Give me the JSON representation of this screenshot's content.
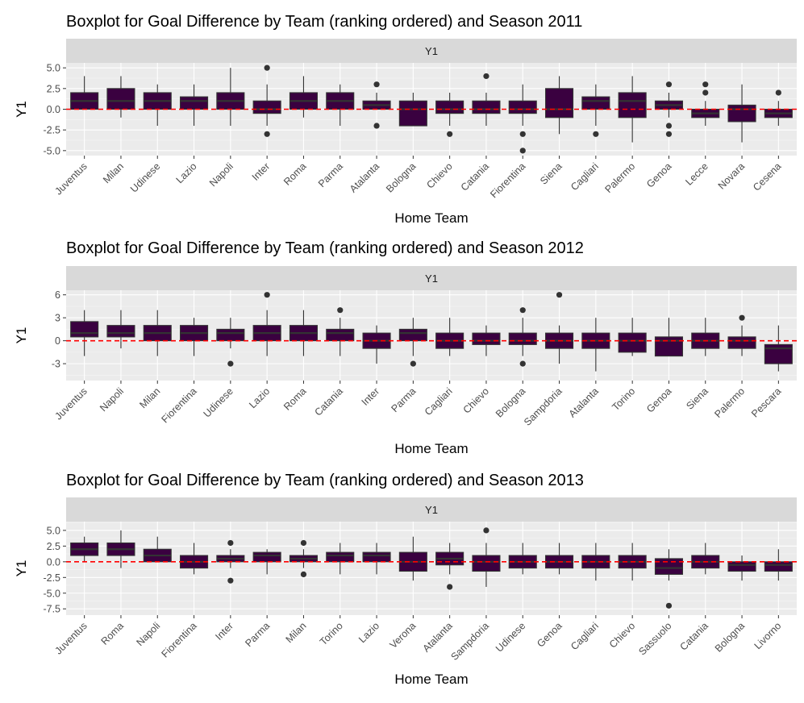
{
  "chart_data": [
    {
      "type": "boxplot",
      "title": "Boxplot for Goal Difference by Team (ranking ordered) and Season 2011",
      "strip_label": "Y1",
      "xlabel": "Home Team",
      "ylabel": "Y1",
      "ylim": [
        -5.6,
        5.6
      ],
      "yticks": [
        -5.0,
        -2.5,
        0.0,
        2.5,
        5.0
      ],
      "ytick_labels": [
        "-5.0",
        "-2.5",
        "0.0",
        "2.5",
        "5.0"
      ],
      "reference_line": 0,
      "fill_color": "#3a0140",
      "line_color": "#ff0000",
      "categories": [
        "Juventus",
        "Milan",
        "Udinese",
        "Lazio",
        "Napoli",
        "Inter",
        "Roma",
        "Parma",
        "Atalanta",
        "Bologna",
        "Chievo",
        "Catania",
        "Fiorentina",
        "Siena",
        "Cagliari",
        "Palermo",
        "Genoa",
        "Lecce",
        "Novara",
        "Cesena"
      ],
      "boxes": [
        {
          "low": 0,
          "q1": 0,
          "median": 1,
          "q3": 2,
          "high": 4,
          "outliers": []
        },
        {
          "low": -1,
          "q1": 0,
          "median": 1,
          "q3": 2.5,
          "high": 4,
          "outliers": []
        },
        {
          "low": -2,
          "q1": 0,
          "median": 1,
          "q3": 2,
          "high": 3,
          "outliers": []
        },
        {
          "low": -2,
          "q1": 0,
          "median": 1,
          "q3": 1.5,
          "high": 3,
          "outliers": []
        },
        {
          "low": -2,
          "q1": 0,
          "median": 1,
          "q3": 2,
          "high": 5,
          "outliers": []
        },
        {
          "low": -2,
          "q1": -0.5,
          "median": 0,
          "q3": 1,
          "high": 3,
          "outliers": [
            5,
            -3
          ]
        },
        {
          "low": -1,
          "q1": 0,
          "median": 1,
          "q3": 2,
          "high": 4,
          "outliers": []
        },
        {
          "low": -2,
          "q1": 0,
          "median": 1,
          "q3": 2,
          "high": 3,
          "outliers": []
        },
        {
          "low": 0,
          "q1": 0,
          "median": 0.5,
          "q3": 1,
          "high": 2,
          "outliers": [
            3,
            -2
          ]
        },
        {
          "low": -2,
          "q1": -2,
          "median": 0,
          "q3": 1,
          "high": 2,
          "outliers": []
        },
        {
          "low": -2,
          "q1": -0.5,
          "median": 0,
          "q3": 1,
          "high": 2,
          "outliers": [
            -3
          ]
        },
        {
          "low": -2,
          "q1": -0.5,
          "median": 0,
          "q3": 1,
          "high": 2,
          "outliers": [
            4
          ]
        },
        {
          "low": -2,
          "q1": -0.5,
          "median": 0,
          "q3": 1,
          "high": 3,
          "outliers": [
            -3,
            -5
          ]
        },
        {
          "low": -3,
          "q1": -1,
          "median": 0,
          "q3": 2.5,
          "high": 4,
          "outliers": []
        },
        {
          "low": -2,
          "q1": 0,
          "median": 1,
          "q3": 1.5,
          "high": 3,
          "outliers": [
            -3
          ]
        },
        {
          "low": -4,
          "q1": -1,
          "median": 1,
          "q3": 2,
          "high": 4,
          "outliers": []
        },
        {
          "low": -1,
          "q1": 0,
          "median": 0.5,
          "q3": 1,
          "high": 2,
          "outliers": [
            3,
            -2,
            -3
          ]
        },
        {
          "low": -2,
          "q1": -1,
          "median": -0.5,
          "q3": 0,
          "high": 1,
          "outliers": [
            3,
            2
          ]
        },
        {
          "low": -4,
          "q1": -1.5,
          "median": 0,
          "q3": 0.5,
          "high": 3,
          "outliers": []
        },
        {
          "low": -2,
          "q1": -1,
          "median": -0.5,
          "q3": 0,
          "high": 1,
          "outliers": [
            2
          ]
        }
      ]
    },
    {
      "type": "boxplot",
      "title": "Boxplot for Goal Difference by Team (ranking ordered) and Season 2012",
      "strip_label": "Y1",
      "xlabel": "Home Team",
      "ylabel": "Y1",
      "ylim": [
        -5.2,
        6.6
      ],
      "yticks": [
        -3,
        0,
        3,
        6
      ],
      "ytick_labels": [
        "-3",
        "0",
        "3",
        "6"
      ],
      "reference_line": 0,
      "fill_color": "#3a0140",
      "line_color": "#ff0000",
      "categories": [
        "Juventus",
        "Napoli",
        "Milan",
        "Fiorentina",
        "Udinese",
        "Lazio",
        "Roma",
        "Catania",
        "Inter",
        "Parma",
        "Cagliari",
        "Chievo",
        "Bologna",
        "Sampdoria",
        "Atalanta",
        "Torino",
        "Genoa",
        "Siena",
        "Palermo",
        "Pescara"
      ],
      "boxes": [
        {
          "low": -2,
          "q1": 0.5,
          "median": 1,
          "q3": 2.5,
          "high": 4,
          "outliers": []
        },
        {
          "low": -1,
          "q1": 0.5,
          "median": 1,
          "q3": 2,
          "high": 4,
          "outliers": []
        },
        {
          "low": -2,
          "q1": 0,
          "median": 1,
          "q3": 2,
          "high": 4,
          "outliers": []
        },
        {
          "low": -2,
          "q1": 0,
          "median": 1,
          "q3": 2,
          "high": 3,
          "outliers": []
        },
        {
          "low": -1,
          "q1": 0,
          "median": 1,
          "q3": 1.5,
          "high": 3,
          "outliers": [
            -3
          ]
        },
        {
          "low": -2,
          "q1": 0,
          "median": 1,
          "q3": 2,
          "high": 4,
          "outliers": [
            6
          ]
        },
        {
          "low": -2,
          "q1": 0,
          "median": 1,
          "q3": 2,
          "high": 4,
          "outliers": []
        },
        {
          "low": -2,
          "q1": 0,
          "median": 1,
          "q3": 1.5,
          "high": 3,
          "outliers": [
            4
          ]
        },
        {
          "low": -3,
          "q1": -1,
          "median": 0,
          "q3": 1,
          "high": 2,
          "outliers": []
        },
        {
          "low": -2,
          "q1": 0,
          "median": 1,
          "q3": 1.5,
          "high": 3,
          "outliers": [
            -3
          ]
        },
        {
          "low": -2,
          "q1": -1,
          "median": 0,
          "q3": 1,
          "high": 3,
          "outliers": []
        },
        {
          "low": -2,
          "q1": -0.5,
          "median": 0,
          "q3": 1,
          "high": 2,
          "outliers": []
        },
        {
          "low": -2,
          "q1": -0.5,
          "median": 0,
          "q3": 1,
          "high": 3,
          "outliers": [
            4,
            -3
          ]
        },
        {
          "low": -3,
          "q1": -1,
          "median": 0,
          "q3": 1,
          "high": 2,
          "outliers": [
            6
          ]
        },
        {
          "low": -4,
          "q1": -1,
          "median": 0,
          "q3": 1,
          "high": 3,
          "outliers": []
        },
        {
          "low": -2,
          "q1": -1.5,
          "median": 0,
          "q3": 1,
          "high": 3,
          "outliers": []
        },
        {
          "low": -2,
          "q1": -2,
          "median": 0,
          "q3": 0.5,
          "high": 3,
          "outliers": []
        },
        {
          "low": -2,
          "q1": -1,
          "median": 0,
          "q3": 1,
          "high": 3,
          "outliers": []
        },
        {
          "low": -2,
          "q1": -1,
          "median": 0,
          "q3": 0.5,
          "high": 2,
          "outliers": [
            3
          ]
        },
        {
          "low": -4,
          "q1": -3,
          "median": -1,
          "q3": -0.5,
          "high": 2,
          "outliers": []
        }
      ]
    },
    {
      "type": "boxplot",
      "title": "Boxplot for Goal Difference by Team (ranking ordered) and Season 2013",
      "strip_label": "Y1",
      "xlabel": "Home Team",
      "ylabel": "Y1",
      "ylim": [
        -8.5,
        6.4
      ],
      "yticks": [
        -7.5,
        -5.0,
        -2.5,
        0.0,
        2.5,
        5.0
      ],
      "ytick_labels": [
        "-7.5",
        "-5.0",
        "-2.5",
        "0.0",
        "2.5",
        "5.0"
      ],
      "reference_line": 0,
      "fill_color": "#3a0140",
      "line_color": "#ff0000",
      "categories": [
        "Juventus",
        "Roma",
        "Napoli",
        "Fiorentina",
        "Inter",
        "Parma",
        "Milan",
        "Torino",
        "Lazio",
        "Verona",
        "Atalanta",
        "Sampdoria",
        "Udinese",
        "Genoa",
        "Cagliari",
        "Chievo",
        "Sassuolo",
        "Catania",
        "Bologna",
        "Livorno"
      ],
      "boxes": [
        {
          "low": 0,
          "q1": 1,
          "median": 2,
          "q3": 3,
          "high": 4,
          "outliers": []
        },
        {
          "low": -1,
          "q1": 1,
          "median": 2,
          "q3": 3,
          "high": 5,
          "outliers": []
        },
        {
          "low": 0,
          "q1": 0,
          "median": 1,
          "q3": 2,
          "high": 4,
          "outliers": []
        },
        {
          "low": -2,
          "q1": -1,
          "median": 0,
          "q3": 1,
          "high": 3,
          "outliers": []
        },
        {
          "low": -1,
          "q1": 0,
          "median": 0.5,
          "q3": 1,
          "high": 2,
          "outliers": [
            3,
            -3
          ]
        },
        {
          "low": -2,
          "q1": 0,
          "median": 1,
          "q3": 1.5,
          "high": 2,
          "outliers": []
        },
        {
          "low": -1,
          "q1": 0,
          "median": 0.5,
          "q3": 1,
          "high": 2,
          "outliers": [
            3,
            -2
          ]
        },
        {
          "low": -2,
          "q1": 0,
          "median": 1,
          "q3": 1.5,
          "high": 3,
          "outliers": []
        },
        {
          "low": -2,
          "q1": 0,
          "median": 1,
          "q3": 1.5,
          "high": 3,
          "outliers": []
        },
        {
          "low": -3,
          "q1": -1.5,
          "median": 0,
          "q3": 1.5,
          "high": 4,
          "outliers": []
        },
        {
          "low": -2,
          "q1": -0.5,
          "median": 0.5,
          "q3": 1.5,
          "high": 3,
          "outliers": [
            -4
          ]
        },
        {
          "low": -4,
          "q1": -1.5,
          "median": 0,
          "q3": 1,
          "high": 3,
          "outliers": [
            5
          ]
        },
        {
          "low": -2,
          "q1": -1,
          "median": 0,
          "q3": 1,
          "high": 3,
          "outliers": []
        },
        {
          "low": -2,
          "q1": -1,
          "median": 0,
          "q3": 1,
          "high": 3,
          "outliers": []
        },
        {
          "low": -3,
          "q1": -1,
          "median": 0,
          "q3": 1,
          "high": 3,
          "outliers": []
        },
        {
          "low": -3,
          "q1": -1,
          "median": 0,
          "q3": 1,
          "high": 3,
          "outliers": []
        },
        {
          "low": -3,
          "q1": -2,
          "median": -1,
          "q3": 0.5,
          "high": 2,
          "outliers": [
            -7
          ]
        },
        {
          "low": -2,
          "q1": -1,
          "median": 0,
          "q3": 1,
          "high": 3,
          "outliers": []
        },
        {
          "low": -3,
          "q1": -1.5,
          "median": -0.5,
          "q3": 0,
          "high": 1,
          "outliers": []
        },
        {
          "low": -3,
          "q1": -1.5,
          "median": -0.5,
          "q3": 0,
          "high": 2,
          "outliers": []
        }
      ]
    }
  ]
}
